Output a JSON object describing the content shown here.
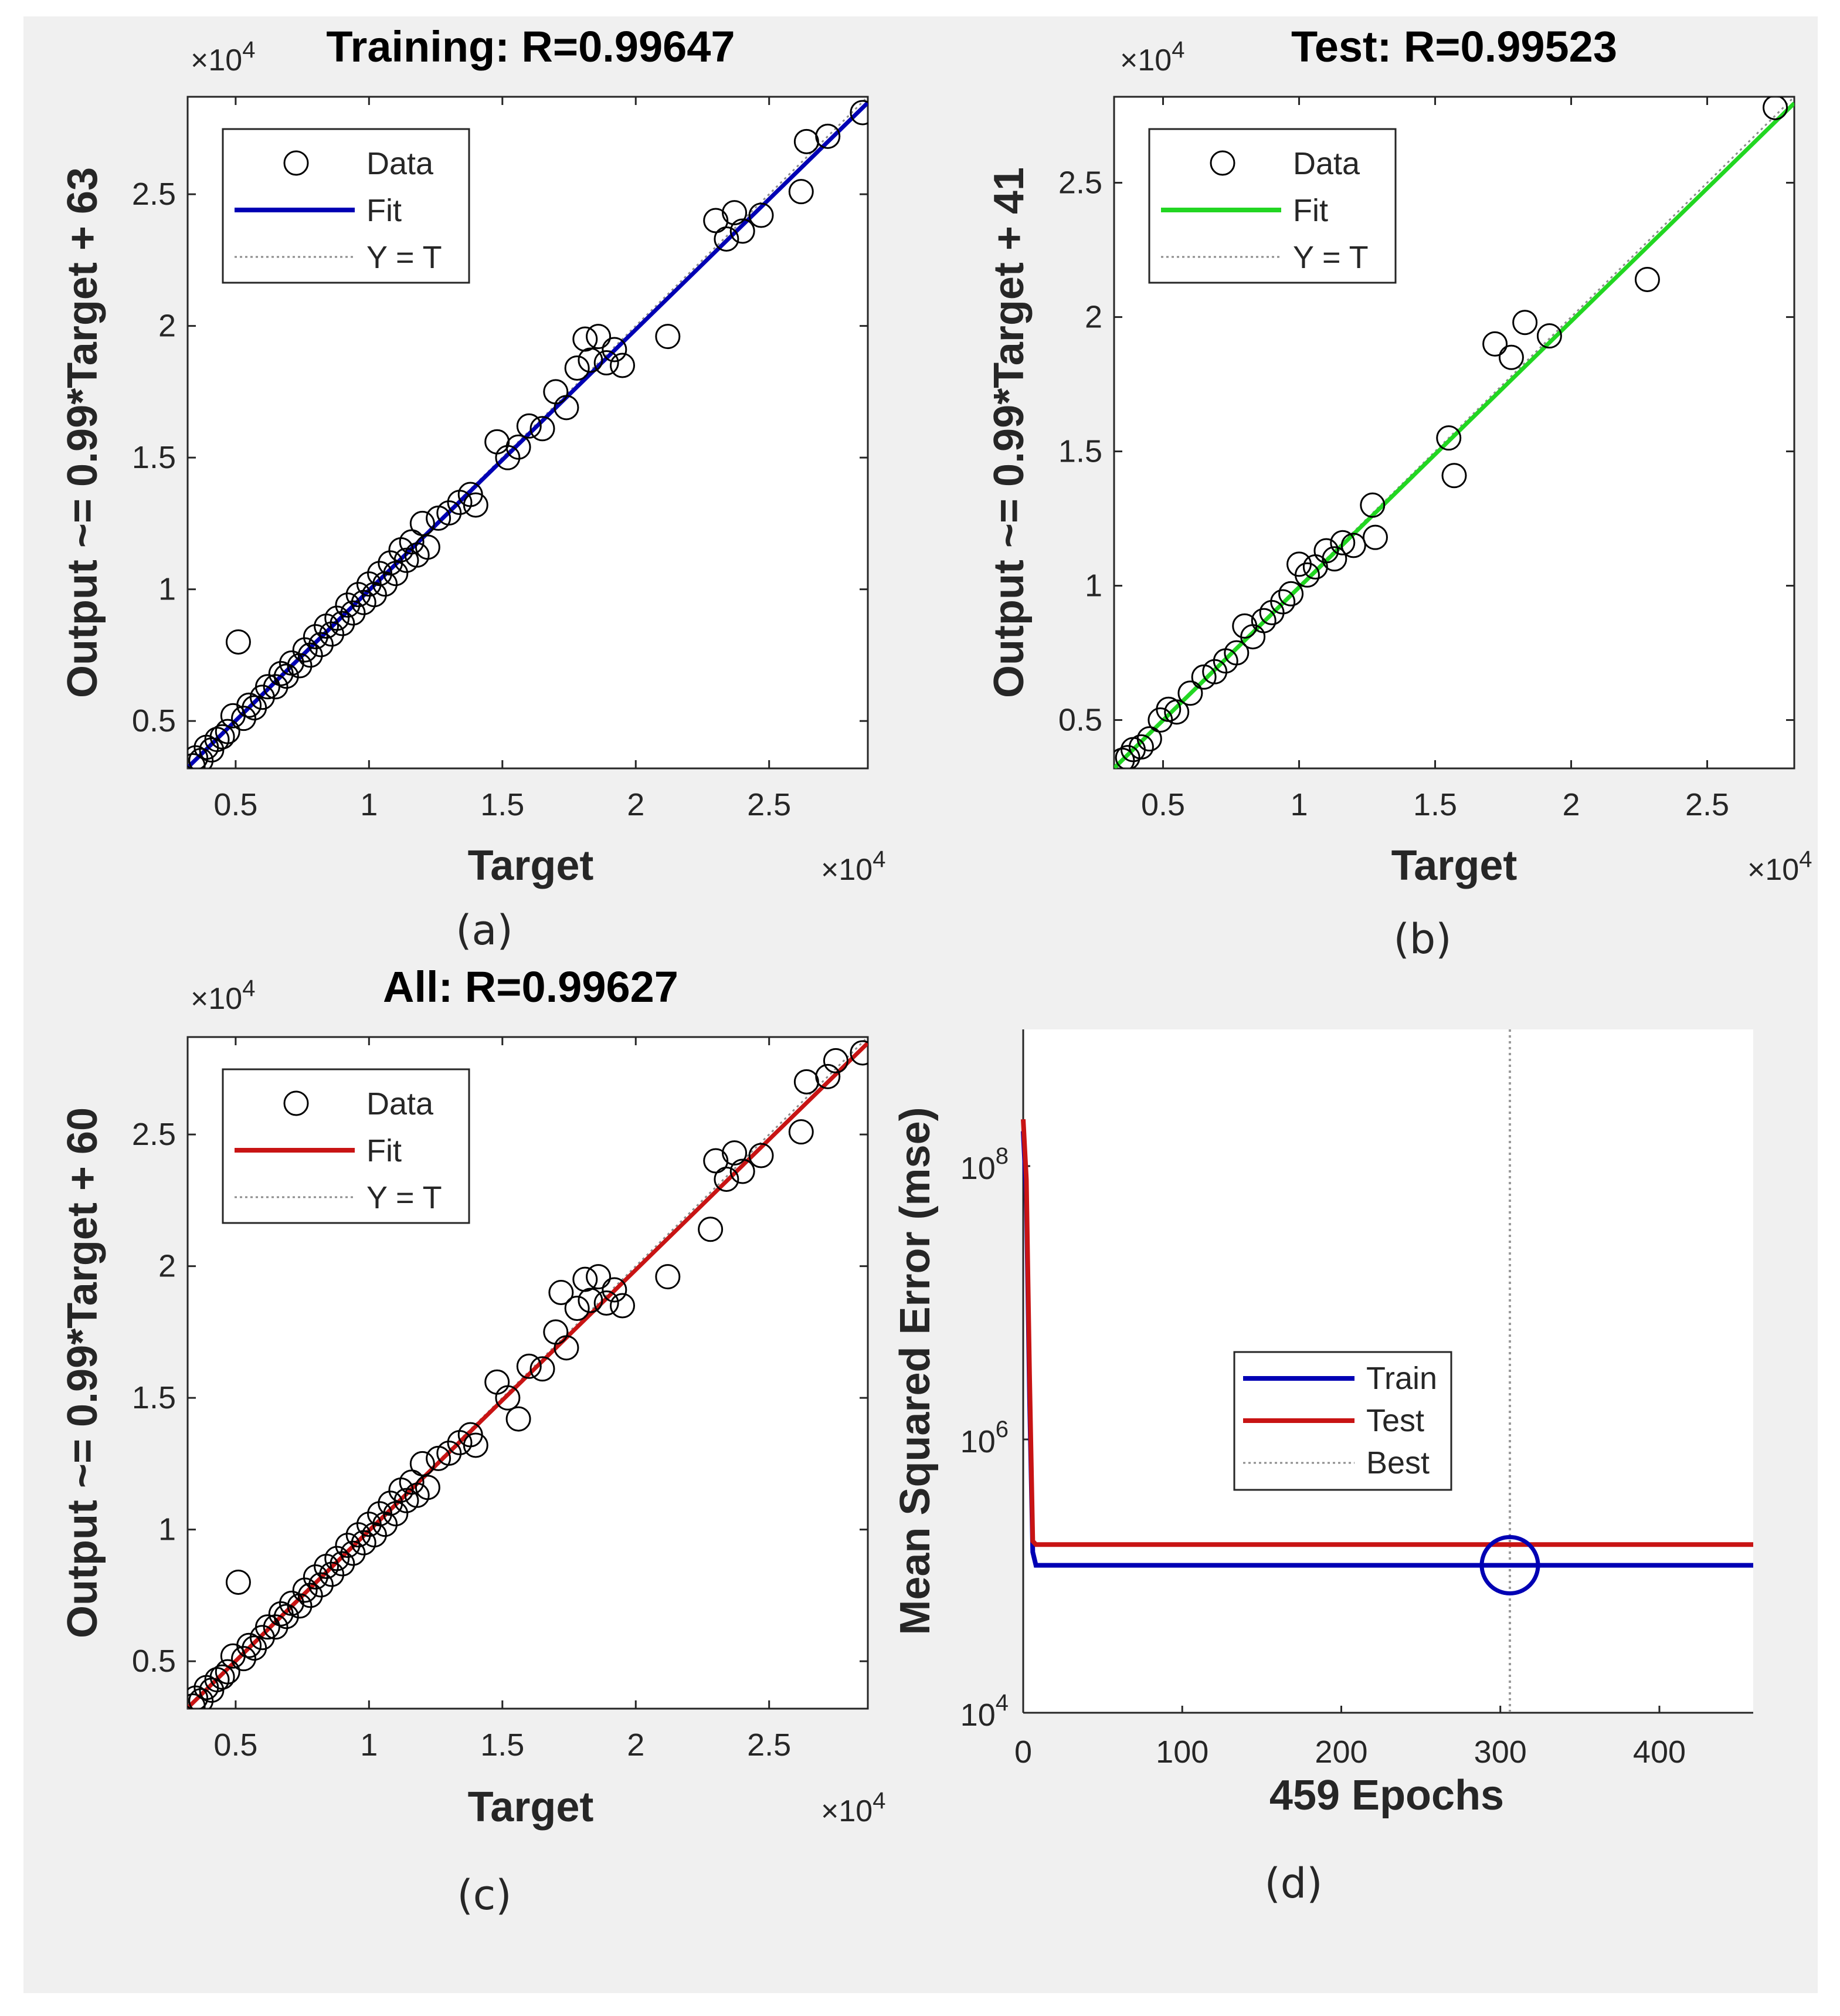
{
  "chart_data": [
    {
      "id": "a",
      "type": "scatter",
      "caption": "(a)",
      "title": "Training: R=0.99647",
      "xlabel": "Target",
      "ylabel": "Output ~= 0.99*Target + 63",
      "x_scale": "×10",
      "y_scale": "×10",
      "scale_exp": "4",
      "xlim": [
        3200,
        28700
      ],
      "ylim": [
        3200,
        28700
      ],
      "xticks": [
        5000,
        10000,
        15000,
        20000,
        25000
      ],
      "xtick_labels": [
        "0.5",
        "1",
        "1.5",
        "2",
        "2.5"
      ],
      "yticks": [
        5000,
        10000,
        15000,
        20000,
        25000
      ],
      "ytick_labels": [
        "0.5",
        "1",
        "1.5",
        "2",
        "2.5"
      ],
      "fit": {
        "slope": 0.99,
        "intercept": 63,
        "color": "#0000b4"
      },
      "legend": [
        {
          "name": "Data",
          "style": "circle"
        },
        {
          "name": "Fit",
          "style": "line",
          "color": "#0000b4"
        },
        {
          "name": "Y = T",
          "style": "dotted"
        }
      ],
      "points": [
        [
          3400,
          3300
        ],
        [
          3500,
          3600
        ],
        [
          3700,
          3500
        ],
        [
          3900,
          4000
        ],
        [
          4100,
          3900
        ],
        [
          4300,
          4300
        ],
        [
          4500,
          4400
        ],
        [
          4700,
          4600
        ],
        [
          4900,
          5200
        ],
        [
          5100,
          8000
        ],
        [
          5300,
          5100
        ],
        [
          5500,
          5600
        ],
        [
          5700,
          5500
        ],
        [
          6000,
          5900
        ],
        [
          6200,
          6300
        ],
        [
          6500,
          6300
        ],
        [
          6700,
          6800
        ],
        [
          6900,
          6700
        ],
        [
          7100,
          7200
        ],
        [
          7400,
          7100
        ],
        [
          7600,
          7700
        ],
        [
          7800,
          7500
        ],
        [
          8000,
          8200
        ],
        [
          8200,
          7900
        ],
        [
          8400,
          8600
        ],
        [
          8600,
          8300
        ],
        [
          8800,
          8900
        ],
        [
          9000,
          8700
        ],
        [
          9200,
          9400
        ],
        [
          9400,
          9100
        ],
        [
          9600,
          9800
        ],
        [
          9800,
          9500
        ],
        [
          10000,
          10200
        ],
        [
          10200,
          9800
        ],
        [
          10400,
          10600
        ],
        [
          10600,
          10200
        ],
        [
          10800,
          11000
        ],
        [
          11000,
          10600
        ],
        [
          11200,
          11500
        ],
        [
          11400,
          11100
        ],
        [
          11600,
          11800
        ],
        [
          11800,
          11300
        ],
        [
          12000,
          12500
        ],
        [
          12200,
          11600
        ],
        [
          12600,
          12700
        ],
        [
          13000,
          12900
        ],
        [
          13400,
          13300
        ],
        [
          13800,
          13600
        ],
        [
          14000,
          13200
        ],
        [
          14800,
          15600
        ],
        [
          15200,
          15000
        ],
        [
          15600,
          15400
        ],
        [
          16000,
          16200
        ],
        [
          16500,
          16100
        ],
        [
          17000,
          17500
        ],
        [
          17400,
          16900
        ],
        [
          17800,
          18400
        ],
        [
          18100,
          19500
        ],
        [
          18300,
          18700
        ],
        [
          18600,
          19600
        ],
        [
          18900,
          18600
        ],
        [
          19200,
          19100
        ],
        [
          19500,
          18500
        ],
        [
          21200,
          19600
        ],
        [
          23000,
          24000
        ],
        [
          23400,
          23300
        ],
        [
          23700,
          24300
        ],
        [
          24000,
          23600
        ],
        [
          24700,
          24200
        ],
        [
          26200,
          25100
        ],
        [
          26400,
          27000
        ],
        [
          27200,
          27200
        ],
        [
          28500,
          28100
        ]
      ]
    },
    {
      "id": "b",
      "type": "scatter",
      "caption": "(b)",
      "title": "Test: R=0.99523",
      "xlabel": "Target",
      "ylabel": "Output ~= 0.99*Target + 41",
      "x_scale": "×10",
      "y_scale": "×10",
      "scale_exp": "4",
      "xlim": [
        3200,
        28200
      ],
      "ylim": [
        3200,
        28200
      ],
      "xticks": [
        5000,
        10000,
        15000,
        20000,
        25000
      ],
      "xtick_labels": [
        "0.5",
        "1",
        "1.5",
        "2",
        "2.5"
      ],
      "yticks": [
        5000,
        10000,
        15000,
        20000,
        25000
      ],
      "ytick_labels": [
        "0.5",
        "1",
        "1.5",
        "2",
        "2.5"
      ],
      "fit": {
        "slope": 0.99,
        "intercept": 41,
        "color": "#22d622"
      },
      "legend": [
        {
          "name": "Data",
          "style": "circle"
        },
        {
          "name": "Fit",
          "style": "line",
          "color": "#22d622"
        },
        {
          "name": "Y = T",
          "style": "dotted"
        }
      ],
      "points": [
        [
          3500,
          3500
        ],
        [
          3700,
          3600
        ],
        [
          3900,
          3900
        ],
        [
          4200,
          4000
        ],
        [
          4500,
          4300
        ],
        [
          4900,
          5000
        ],
        [
          5200,
          5400
        ],
        [
          5500,
          5300
        ],
        [
          6000,
          6000
        ],
        [
          6500,
          6600
        ],
        [
          6900,
          6800
        ],
        [
          7300,
          7200
        ],
        [
          7700,
          7500
        ],
        [
          8000,
          8500
        ],
        [
          8300,
          8100
        ],
        [
          8700,
          8700
        ],
        [
          9000,
          9000
        ],
        [
          9400,
          9400
        ],
        [
          9700,
          9700
        ],
        [
          10000,
          10800
        ],
        [
          10300,
          10400
        ],
        [
          10600,
          10700
        ],
        [
          11000,
          11300
        ],
        [
          11300,
          11000
        ],
        [
          11600,
          11600
        ],
        [
          12000,
          11500
        ],
        [
          12700,
          13000
        ],
        [
          12800,
          11800
        ],
        [
          15500,
          15500
        ],
        [
          15700,
          14100
        ],
        [
          17200,
          19000
        ],
        [
          17800,
          18500
        ],
        [
          18300,
          19800
        ],
        [
          19200,
          19300
        ],
        [
          22800,
          21400
        ],
        [
          27500,
          27800
        ]
      ]
    },
    {
      "id": "c",
      "type": "scatter",
      "caption": "(c)",
      "title": "All: R=0.99627",
      "xlabel": "Target",
      "ylabel": "Output ~= 0.99*Target + 60",
      "x_scale": "×10",
      "y_scale": "×10",
      "scale_exp": "4",
      "xlim": [
        3200,
        28700
      ],
      "ylim": [
        3200,
        28700
      ],
      "xticks": [
        5000,
        10000,
        15000,
        20000,
        25000
      ],
      "xtick_labels": [
        "0.5",
        "1",
        "1.5",
        "2",
        "2.5"
      ],
      "yticks": [
        5000,
        10000,
        15000,
        20000,
        25000
      ],
      "ytick_labels": [
        "0.5",
        "1",
        "1.5",
        "2",
        "2.5"
      ],
      "fit": {
        "slope": 0.99,
        "intercept": 60,
        "color": "#c81414"
      },
      "legend": [
        {
          "name": "Data",
          "style": "circle"
        },
        {
          "name": "Fit",
          "style": "line",
          "color": "#c81414"
        },
        {
          "name": "Y = T",
          "style": "dotted"
        }
      ],
      "points": [
        [
          3400,
          3300
        ],
        [
          3500,
          3600
        ],
        [
          3700,
          3500
        ],
        [
          3900,
          4000
        ],
        [
          4100,
          3900
        ],
        [
          4300,
          4300
        ],
        [
          4500,
          4400
        ],
        [
          4700,
          4600
        ],
        [
          4900,
          5200
        ],
        [
          5100,
          8000
        ],
        [
          5300,
          5100
        ],
        [
          5500,
          5600
        ],
        [
          5700,
          5500
        ],
        [
          6000,
          5900
        ],
        [
          6200,
          6300
        ],
        [
          6500,
          6300
        ],
        [
          6700,
          6800
        ],
        [
          6900,
          6700
        ],
        [
          7100,
          7200
        ],
        [
          7400,
          7100
        ],
        [
          7600,
          7700
        ],
        [
          7800,
          7500
        ],
        [
          8000,
          8200
        ],
        [
          8200,
          7900
        ],
        [
          8400,
          8600
        ],
        [
          8600,
          8300
        ],
        [
          8800,
          8900
        ],
        [
          9000,
          8700
        ],
        [
          9200,
          9400
        ],
        [
          9400,
          9100
        ],
        [
          9600,
          9800
        ],
        [
          9800,
          9500
        ],
        [
          10000,
          10200
        ],
        [
          10200,
          9800
        ],
        [
          10400,
          10600
        ],
        [
          10600,
          10200
        ],
        [
          10800,
          11000
        ],
        [
          11000,
          10600
        ],
        [
          11200,
          11500
        ],
        [
          11400,
          11100
        ],
        [
          11600,
          11800
        ],
        [
          11800,
          11300
        ],
        [
          12000,
          12500
        ],
        [
          12200,
          11600
        ],
        [
          12600,
          12700
        ],
        [
          13000,
          12900
        ],
        [
          13400,
          13300
        ],
        [
          13800,
          13600
        ],
        [
          14000,
          13200
        ],
        [
          14800,
          15600
        ],
        [
          15200,
          15000
        ],
        [
          15600,
          14200
        ],
        [
          16000,
          16200
        ],
        [
          16500,
          16100
        ],
        [
          17000,
          17500
        ],
        [
          17200,
          19000
        ],
        [
          17400,
          16900
        ],
        [
          17800,
          18400
        ],
        [
          18100,
          19500
        ],
        [
          18300,
          18700
        ],
        [
          18600,
          19600
        ],
        [
          18900,
          18600
        ],
        [
          19200,
          19100
        ],
        [
          19500,
          18500
        ],
        [
          21200,
          19600
        ],
        [
          22800,
          21400
        ],
        [
          23000,
          24000
        ],
        [
          23400,
          23300
        ],
        [
          23700,
          24300
        ],
        [
          24000,
          23600
        ],
        [
          24700,
          24200
        ],
        [
          26200,
          25100
        ],
        [
          26400,
          27000
        ],
        [
          27200,
          27200
        ],
        [
          27500,
          27800
        ],
        [
          28500,
          28100
        ]
      ]
    },
    {
      "id": "d",
      "type": "line",
      "caption": "(d)",
      "xlabel": "459 Epochs",
      "ylabel": "Mean Squared Error  (mse)",
      "y_log": true,
      "xlim": [
        0,
        459
      ],
      "ylim_log10": [
        4,
        9
      ],
      "xticks": [
        0,
        100,
        200,
        300,
        400
      ],
      "xtick_labels": [
        "0",
        "100",
        "200",
        "300",
        "400"
      ],
      "ytick_log10": [
        4,
        6,
        8
      ],
      "ytick_base": "10",
      "ytick_exps": [
        "4",
        "6",
        "8"
      ],
      "series": [
        {
          "name": "Train",
          "color": "#0000b4",
          "x": [
            0,
            2,
            4,
            6,
            8,
            459
          ],
          "y": [
            180000000,
            60000000,
            2000000,
            150000,
            120000,
            120000
          ]
        },
        {
          "name": "Test",
          "color": "#c81414",
          "x": [
            0,
            2,
            4,
            6,
            8,
            459
          ],
          "y": [
            220000000,
            80000000,
            3000000,
            180000,
            170000,
            170000
          ]
        }
      ],
      "best_epoch": 306,
      "best_value": 120000,
      "legend": [
        {
          "name": "Train",
          "style": "line",
          "color": "#0000b4"
        },
        {
          "name": "Test",
          "style": "line",
          "color": "#c81414"
        },
        {
          "name": "Best",
          "style": "dotted"
        }
      ]
    }
  ]
}
